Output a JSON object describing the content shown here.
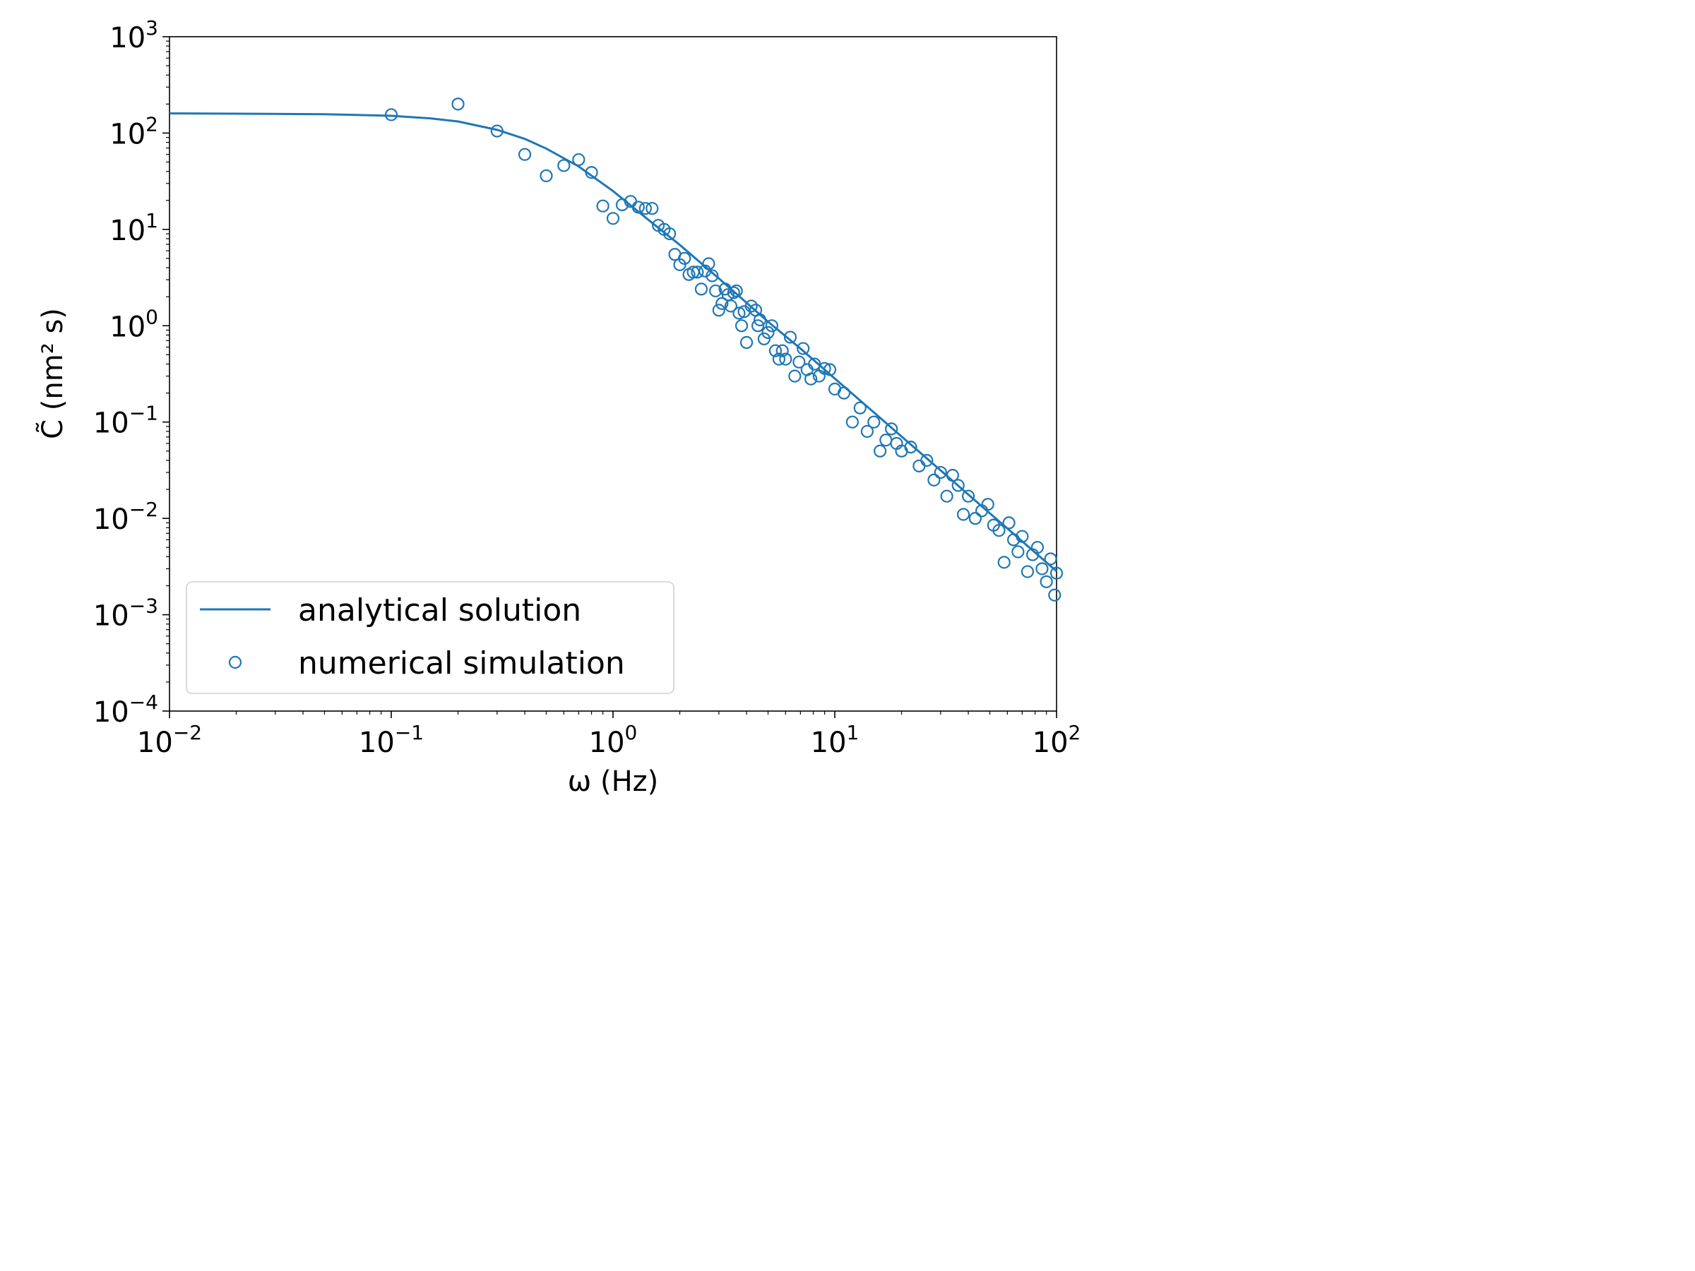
{
  "chart_data": {
    "type": "scatter",
    "title": "",
    "xlabel": "ω (Hz)",
    "ylabel": "C̃ (nm² s)",
    "xscale": "log",
    "yscale": "log",
    "xlim": [
      0.01,
      100
    ],
    "ylim": [
      0.0001,
      1000
    ],
    "grid": false,
    "legend_position": "lower-left",
    "color": "#1f77b4",
    "x_ticks": [
      {
        "base": "10",
        "exp": "−2"
      },
      {
        "base": "10",
        "exp": "−1"
      },
      {
        "base": "10",
        "exp": "0"
      },
      {
        "base": "10",
        "exp": "1"
      },
      {
        "base": "10",
        "exp": "2"
      }
    ],
    "y_ticks": [
      {
        "base": "10",
        "exp": "−4"
      },
      {
        "base": "10",
        "exp": "−3"
      },
      {
        "base": "10",
        "exp": "−2"
      },
      {
        "base": "10",
        "exp": "−1"
      },
      {
        "base": "10",
        "exp": "0"
      },
      {
        "base": "10",
        "exp": "1"
      },
      {
        "base": "10",
        "exp": "2"
      },
      {
        "base": "10",
        "exp": "3"
      }
    ],
    "series": [
      {
        "name": "analytical solution",
        "kind": "line",
        "x": [
          0.01,
          0.02,
          0.05,
          0.1,
          0.15,
          0.2,
          0.3,
          0.4,
          0.5,
          0.7,
          1.0,
          1.5,
          2.0,
          3.0,
          5.0,
          7.0,
          10,
          15,
          20,
          30,
          50,
          70,
          100
        ],
        "y": [
          160,
          159,
          157,
          151,
          142,
          132,
          108,
          87,
          69,
          45,
          25,
          11.7,
          6.9,
          3.1,
          1.1,
          0.58,
          0.283,
          0.126,
          0.0708,
          0.0315,
          0.0113,
          0.00578,
          0.00283
        ]
      },
      {
        "name": "numerical simulation",
        "kind": "scatter",
        "x": [
          0.1,
          0.2,
          0.3,
          0.4,
          0.5,
          0.6,
          0.7,
          0.8,
          0.9,
          1.0,
          1.1,
          1.2,
          1.3,
          1.4,
          1.5,
          1.6,
          1.7,
          1.8,
          1.9,
          2.0,
          2.1,
          2.2,
          2.3,
          2.4,
          2.5,
          2.6,
          2.7,
          2.8,
          2.9,
          3.0,
          3.1,
          3.2,
          3.3,
          3.4,
          3.5,
          3.6,
          3.7,
          3.8,
          3.9,
          4.0,
          4.2,
          4.4,
          4.5,
          4.6,
          4.8,
          5.0,
          5.2,
          5.4,
          5.6,
          5.8,
          6.0,
          6.3,
          6.6,
          6.9,
          7.2,
          7.5,
          7.8,
          8.1,
          8.5,
          9.0,
          9.5,
          10,
          11,
          12,
          13,
          14,
          15,
          16,
          17,
          18,
          19,
          20,
          22,
          24,
          26,
          28,
          30,
          32,
          34,
          36,
          38,
          40,
          43,
          46,
          49,
          52,
          55,
          58,
          61,
          64,
          67,
          70,
          74,
          78,
          82,
          86,
          90,
          94,
          98,
          100
        ],
        "y": [
          155,
          200,
          105,
          60,
          36,
          46,
          53,
          39,
          17.5,
          13,
          18,
          19.5,
          17,
          16.5,
          16.5,
          11,
          10,
          9,
          5.5,
          4.3,
          5,
          3.4,
          3.6,
          3.6,
          2.4,
          3.7,
          4.4,
          3.3,
          2.3,
          1.45,
          1.7,
          2.4,
          2.1,
          1.6,
          2.2,
          2.3,
          1.35,
          1.0,
          1.4,
          0.67,
          1.6,
          1.45,
          1.0,
          1.15,
          0.73,
          0.85,
          1.0,
          0.55,
          0.45,
          0.55,
          0.45,
          0.76,
          0.3,
          0.42,
          0.58,
          0.35,
          0.28,
          0.4,
          0.3,
          0.36,
          0.35,
          0.22,
          0.2,
          0.1,
          0.14,
          0.08,
          0.1,
          0.05,
          0.065,
          0.085,
          0.06,
          0.05,
          0.055,
          0.035,
          0.04,
          0.025,
          0.03,
          0.017,
          0.028,
          0.022,
          0.011,
          0.017,
          0.01,
          0.012,
          0.014,
          0.0085,
          0.0075,
          0.0035,
          0.009,
          0.006,
          0.0045,
          0.0065,
          0.0028,
          0.0042,
          0.005,
          0.003,
          0.0022,
          0.0038,
          0.0016,
          0.0027
        ]
      }
    ]
  }
}
